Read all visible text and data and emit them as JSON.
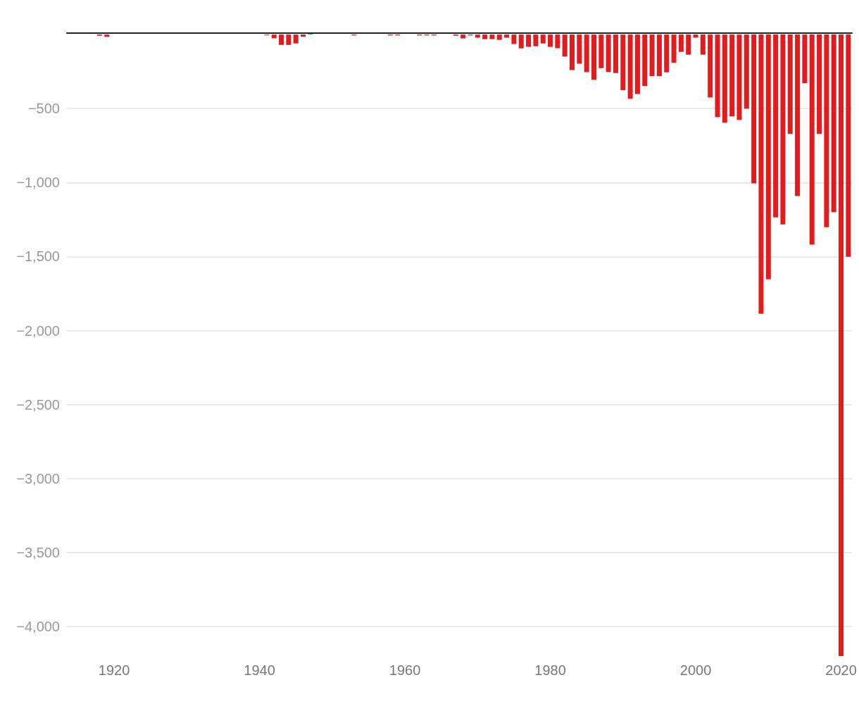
{
  "chart_data": {
    "type": "bar",
    "x": [
      1918,
      1919,
      1941,
      1942,
      1943,
      1944,
      1945,
      1946,
      1947,
      1953,
      1958,
      1959,
      1962,
      1963,
      1964,
      1967,
      1968,
      1969,
      1970,
      1971,
      1972,
      1973,
      1974,
      1975,
      1976,
      1977,
      1978,
      1979,
      1980,
      1981,
      1982,
      1983,
      1984,
      1985,
      1986,
      1987,
      1988,
      1989,
      1990,
      1991,
      1992,
      1993,
      1994,
      1995,
      1996,
      1997,
      1998,
      1999,
      2000,
      2001,
      2002,
      2003,
      2004,
      2005,
      2006,
      2007,
      2008,
      2009,
      2010,
      2011,
      2012,
      2013,
      2014,
      2015,
      2016,
      2017,
      2018,
      2019,
      2020,
      2021
    ],
    "values": [
      -8,
      -15,
      -5,
      -25,
      -70,
      -70,
      -60,
      -15,
      5,
      -6,
      -6,
      -6,
      -6,
      -6,
      -6,
      -8,
      -26,
      -6,
      -21,
      -31,
      -31,
      -36,
      -21,
      -64,
      -93,
      -83,
      -79,
      -60,
      -83,
      -92,
      -149,
      -240,
      -197,
      -254,
      -306,
      -227,
      -253,
      -260,
      -376,
      -434,
      -402,
      -348,
      -281,
      -281,
      -255,
      -191,
      -117,
      -136,
      -21,
      -136,
      -425,
      -558,
      -596,
      -553,
      -577,
      -501,
      -1006,
      -1887,
      -1654,
      -1235,
      -1283,
      -671,
      -1091,
      -329,
      -1420,
      -671,
      -1302,
      -1201,
      -4200,
      -1501
    ],
    "colors": [
      "#e31b1d",
      "#e31b1d",
      "#e31b1d",
      "#e31b1d",
      "#e31b1d",
      "#e31b1d",
      "#e31b1d",
      "#e31b1d",
      "#2a9fbc",
      "#e31b1d",
      "#e31b1d",
      "#e31b1d",
      "#e31b1d",
      "#e31b1d",
      "#e31b1d",
      "#e31b1d",
      "#e31b1d",
      "#e31b1d",
      "#e31b1d",
      "#e31b1d",
      "#e31b1d",
      "#e31b1d",
      "#e31b1d",
      "#e31b1d",
      "#e31b1d",
      "#e31b1d",
      "#e31b1d",
      "#e31b1d",
      "#e31b1d",
      "#e31b1d",
      "#e31b1d",
      "#e31b1d",
      "#e31b1d",
      "#e31b1d",
      "#e31b1d",
      "#e31b1d",
      "#e31b1d",
      "#e31b1d",
      "#e31b1d",
      "#e31b1d",
      "#e31b1d",
      "#e31b1d",
      "#e31b1d",
      "#e31b1d",
      "#e31b1d",
      "#e31b1d",
      "#e31b1d",
      "#e31b1d",
      "#e31b1d",
      "#e31b1d",
      "#e31b1d",
      "#e31b1d",
      "#e31b1d",
      "#e31b1d",
      "#e31b1d",
      "#e31b1d",
      "#e31b1d",
      "#e31b1d",
      "#e31b1d",
      "#e31b1d",
      "#e31b1d",
      "#e31b1d",
      "#e31b1d",
      "#e31b1d",
      "#e31b1d",
      "#e31b1d",
      "#e31b1d",
      "#e31b1d",
      "#e31b1d",
      "#e31b1d"
    ],
    "xlim": [
      1913.5,
      2021.5
    ],
    "xticks": [
      1920,
      1940,
      1960,
      1980,
      2000,
      2020
    ],
    "ylim": [
      -4200,
      10
    ],
    "yticks": [
      {
        "value": -4000,
        "label": "−4,000"
      },
      {
        "value": -3500,
        "label": "−3,500"
      },
      {
        "value": -3000,
        "label": "−3,000"
      },
      {
        "value": -2500,
        "label": "−2,500"
      },
      {
        "value": -2000,
        "label": "−2,000"
      },
      {
        "value": -1500,
        "label": "−1,500"
      },
      {
        "value": -1000,
        "label": "−1,000"
      },
      {
        "value": -500,
        "label": "−500"
      }
    ],
    "grid": "y"
  }
}
